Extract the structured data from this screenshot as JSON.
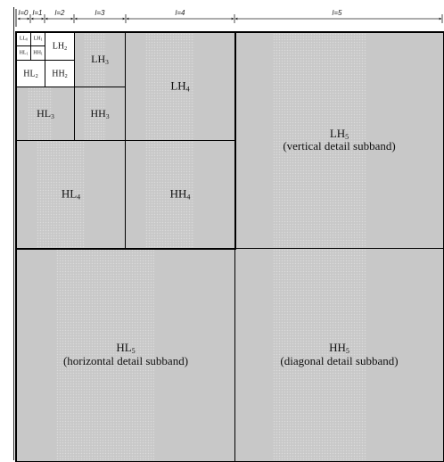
{
  "scale": {
    "levels": [
      {
        "text": "l=0"
      },
      {
        "text": "l=1"
      },
      {
        "text": "l=2"
      },
      {
        "text": "l=3"
      },
      {
        "text": "l=4"
      },
      {
        "text": "l=5"
      }
    ]
  },
  "subbands": {
    "LL0": {
      "name": "LL",
      "sub": "0"
    },
    "LH1": {
      "name": "LH",
      "sub": "1"
    },
    "HL1": {
      "name": "HL",
      "sub": "1"
    },
    "HH1": {
      "name": "HH",
      "sub": "1"
    },
    "LH2": {
      "name": "LH",
      "sub": "2"
    },
    "HL2": {
      "name": "HL",
      "sub": "2"
    },
    "HH2": {
      "name": "HH",
      "sub": "2"
    },
    "LH3": {
      "name": "LH",
      "sub": "3"
    },
    "HL3": {
      "name": "HL",
      "sub": "3"
    },
    "HH3": {
      "name": "HH",
      "sub": "3"
    },
    "LH4": {
      "name": "LH",
      "sub": "4"
    },
    "HL4": {
      "name": "HL",
      "sub": "4"
    },
    "HH4": {
      "name": "HH",
      "sub": "4"
    },
    "LH5": {
      "name": "LH",
      "sub": "5",
      "desc": "(vertical detail subband)"
    },
    "HL5": {
      "name": "HL",
      "sub": "5",
      "desc": "(horizontal detail subband)"
    },
    "HH5": {
      "name": "HH",
      "sub": "5",
      "desc": "(diagonal detail subband)"
    }
  },
  "colors": {
    "subband_fill": "#c8c8c8",
    "detail_speckle": "#e8e8e8",
    "border": "#000000"
  }
}
